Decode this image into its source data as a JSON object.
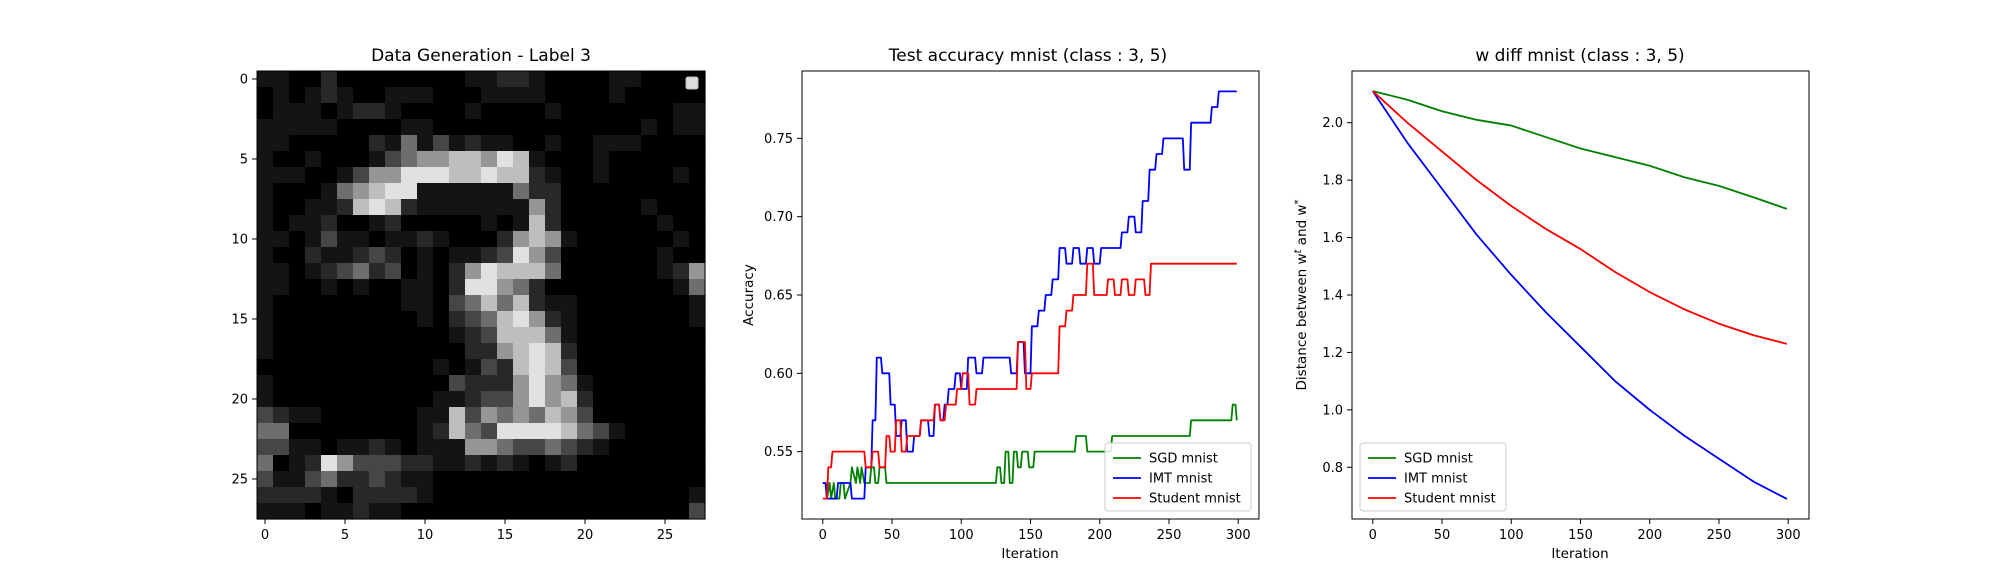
{
  "chart_data": [
    {
      "type": "heatmap",
      "title": "Data Generation - Label 3",
      "xlim": [
        -0.5,
        27.5
      ],
      "ylim": [
        27.5,
        -0.5
      ],
      "xticks": [
        0,
        5,
        10,
        15,
        20,
        25
      ],
      "yticks": [
        0,
        5,
        10,
        15,
        20,
        25
      ],
      "colormap": "gray",
      "legend": "top-right, empty",
      "image_rows": [
        "1100200000000112210000110000",
        "0101210011100011110000100000",
        "0111012210000100001000000011",
        "1111100001100000000000001011",
        "1100000214131211001001110000",
        "1001000134556657610001000000",
        "1110013557776676621001000010",
        "1000145677111111422000000000",
        "1001126762111111152000001000",
        "1011200120000010162000000100",
        "1101311011210002565100000010",
        "1002112320101123753000000100",
        "1101234230102576664000000125",
        "1100101001102775420000000014",
        "1000000001103464621100000001",
        "1000000000102346752100000001",
        "1000000000001236664100000000",
        "1000000000000225676200000000",
        "0000000000010132676300000000",
        "1000000000003222575410000000",
        "1000000000011233575620000000",
        "3211000000116354546530000000",
        "4400000000126437777643100000",
        "3311011210111554334321000000",
        "4012753332211212101200000000",
        "3113422321100000000000000000",
        "2222102222100000000000000001",
        "1110112110000000000000000003"
      ]
    },
    {
      "type": "line",
      "title": "Test accuracy mnist (class : 3, 5)",
      "xlabel": "Iteration",
      "ylabel": "Accuracy",
      "xlim": [
        -15,
        315
      ],
      "ylim": [
        0.507,
        0.793
      ],
      "xticks": [
        0,
        50,
        100,
        150,
        200,
        250,
        300
      ],
      "yticks": [
        0.55,
        0.6,
        0.65,
        0.7,
        0.75
      ],
      "legend": "lower-right",
      "series": [
        {
          "name": "SGD mnist",
          "color": "#008000",
          "x": [
            0,
            2,
            3,
            5,
            6,
            8,
            9,
            12,
            13,
            15,
            16,
            20,
            21,
            24,
            25,
            27,
            28,
            30,
            31,
            34,
            35,
            37,
            38,
            40,
            41,
            45,
            46,
            50,
            51,
            125,
            126,
            128,
            129,
            131,
            132,
            134,
            135,
            137,
            138,
            140,
            141,
            143,
            144,
            148,
            149,
            152,
            153,
            170,
            171,
            182,
            183,
            190,
            191,
            208,
            209,
            240,
            241,
            265,
            266,
            295,
            296,
            298,
            299
          ],
          "y": [
            0.53,
            0.53,
            0.52,
            0.53,
            0.52,
            0.53,
            0.52,
            0.52,
            0.53,
            0.53,
            0.52,
            0.53,
            0.54,
            0.53,
            0.54,
            0.53,
            0.54,
            0.53,
            0.53,
            0.53,
            0.54,
            0.54,
            0.53,
            0.53,
            0.54,
            0.54,
            0.53,
            0.53,
            0.53,
            0.53,
            0.54,
            0.54,
            0.53,
            0.53,
            0.55,
            0.55,
            0.53,
            0.53,
            0.55,
            0.55,
            0.54,
            0.54,
            0.55,
            0.55,
            0.54,
            0.54,
            0.55,
            0.55,
            0.55,
            0.55,
            0.56,
            0.56,
            0.55,
            0.55,
            0.56,
            0.56,
            0.56,
            0.56,
            0.57,
            0.57,
            0.58,
            0.58,
            0.57
          ]
        },
        {
          "name": "IMT mnist",
          "color": "#0000ff",
          "x": [
            0,
            2,
            3,
            10,
            11,
            20,
            21,
            30,
            31,
            35,
            36,
            38,
            39,
            42,
            43,
            48,
            49,
            52,
            53,
            56,
            57,
            60,
            61,
            65,
            66,
            70,
            71,
            76,
            77,
            80,
            81,
            84,
            85,
            87,
            88,
            90,
            91,
            95,
            96,
            99,
            100,
            104,
            105,
            110,
            111,
            115,
            116,
            135,
            136,
            140,
            141,
            145,
            146,
            150,
            151,
            155,
            156,
            160,
            161,
            165,
            166,
            170,
            171,
            175,
            176,
            180,
            181,
            185,
            186,
            190,
            191,
            195,
            196,
            200,
            201,
            215,
            216,
            220,
            221,
            225,
            226,
            230,
            231,
            235,
            236,
            240,
            241,
            245,
            246,
            250,
            251,
            260,
            261,
            265,
            266,
            270,
            271,
            280,
            281,
            285,
            286,
            290,
            291,
            299
          ],
          "y": [
            0.53,
            0.53,
            0.52,
            0.52,
            0.53,
            0.53,
            0.52,
            0.52,
            0.54,
            0.54,
            0.57,
            0.57,
            0.61,
            0.61,
            0.6,
            0.6,
            0.58,
            0.58,
            0.56,
            0.56,
            0.57,
            0.57,
            0.55,
            0.55,
            0.56,
            0.56,
            0.57,
            0.57,
            0.56,
            0.56,
            0.58,
            0.58,
            0.57,
            0.57,
            0.58,
            0.58,
            0.59,
            0.59,
            0.6,
            0.6,
            0.59,
            0.59,
            0.61,
            0.61,
            0.6,
            0.6,
            0.61,
            0.61,
            0.6,
            0.6,
            0.62,
            0.62,
            0.6,
            0.6,
            0.63,
            0.63,
            0.64,
            0.64,
            0.65,
            0.65,
            0.66,
            0.66,
            0.68,
            0.68,
            0.67,
            0.67,
            0.68,
            0.68,
            0.67,
            0.67,
            0.68,
            0.68,
            0.67,
            0.67,
            0.68,
            0.68,
            0.69,
            0.69,
            0.7,
            0.7,
            0.69,
            0.69,
            0.71,
            0.71,
            0.73,
            0.73,
            0.74,
            0.74,
            0.75,
            0.75,
            0.75,
            0.75,
            0.73,
            0.73,
            0.76,
            0.76,
            0.76,
            0.76,
            0.77,
            0.77,
            0.78,
            0.78,
            0.78,
            0.78
          ]
        },
        {
          "name": "Student mnist",
          "color": "#ff0000",
          "x": [
            0,
            3,
            4,
            6,
            7,
            30,
            31,
            35,
            36,
            40,
            41,
            45,
            46,
            48,
            49,
            52,
            53,
            56,
            57,
            60,
            61,
            65,
            66,
            70,
            71,
            80,
            81,
            84,
            85,
            88,
            89,
            92,
            93,
            96,
            97,
            100,
            101,
            105,
            106,
            110,
            111,
            120,
            121,
            140,
            141,
            146,
            147,
            150,
            151,
            160,
            161,
            170,
            171,
            175,
            176,
            180,
            181,
            190,
            191,
            195,
            196,
            205,
            206,
            210,
            211,
            215,
            216,
            220,
            221,
            225,
            226,
            232,
            233,
            236,
            237,
            299
          ],
          "y": [
            0.52,
            0.52,
            0.54,
            0.54,
            0.55,
            0.55,
            0.54,
            0.54,
            0.55,
            0.55,
            0.54,
            0.54,
            0.56,
            0.56,
            0.55,
            0.55,
            0.57,
            0.57,
            0.55,
            0.55,
            0.56,
            0.56,
            0.56,
            0.56,
            0.57,
            0.57,
            0.58,
            0.58,
            0.57,
            0.57,
            0.58,
            0.58,
            0.58,
            0.58,
            0.59,
            0.59,
            0.6,
            0.6,
            0.58,
            0.58,
            0.59,
            0.59,
            0.59,
            0.59,
            0.62,
            0.62,
            0.59,
            0.59,
            0.6,
            0.6,
            0.6,
            0.6,
            0.63,
            0.63,
            0.64,
            0.64,
            0.65,
            0.65,
            0.67,
            0.67,
            0.65,
            0.65,
            0.66,
            0.66,
            0.65,
            0.65,
            0.66,
            0.66,
            0.65,
            0.65,
            0.66,
            0.66,
            0.65,
            0.65,
            0.67,
            0.67
          ]
        }
      ]
    },
    {
      "type": "line",
      "title": "w diff mnist (class : 3, 5)",
      "xlabel": "Iteration",
      "ylabel": "Distance between w^t and w^*",
      "xlim": [
        -15,
        315
      ],
      "ylim": [
        0.62,
        2.18
      ],
      "xticks": [
        0,
        50,
        100,
        150,
        200,
        250,
        300
      ],
      "yticks": [
        0.8,
        1.0,
        1.2,
        1.4,
        1.6,
        1.8,
        2.0
      ],
      "legend": "lower-left",
      "series": [
        {
          "name": "SGD mnist",
          "color": "#008000",
          "x": [
            0,
            25,
            50,
            75,
            100,
            125,
            150,
            175,
            200,
            225,
            250,
            275,
            299
          ],
          "y": [
            2.11,
            2.08,
            2.04,
            2.01,
            1.99,
            1.95,
            1.91,
            1.88,
            1.85,
            1.81,
            1.78,
            1.74,
            1.7
          ]
        },
        {
          "name": "IMT mnist",
          "color": "#0000ff",
          "x": [
            0,
            25,
            50,
            75,
            100,
            125,
            150,
            175,
            200,
            225,
            250,
            275,
            299
          ],
          "y": [
            2.11,
            1.93,
            1.77,
            1.61,
            1.47,
            1.34,
            1.22,
            1.1,
            1.0,
            0.91,
            0.83,
            0.75,
            0.69
          ]
        },
        {
          "name": "Student mnist",
          "color": "#ff0000",
          "x": [
            0,
            25,
            50,
            75,
            100,
            125,
            150,
            175,
            200,
            225,
            250,
            275,
            299
          ],
          "y": [
            2.11,
            2.0,
            1.9,
            1.8,
            1.71,
            1.63,
            1.56,
            1.48,
            1.41,
            1.35,
            1.3,
            1.26,
            1.23
          ]
        }
      ]
    }
  ]
}
